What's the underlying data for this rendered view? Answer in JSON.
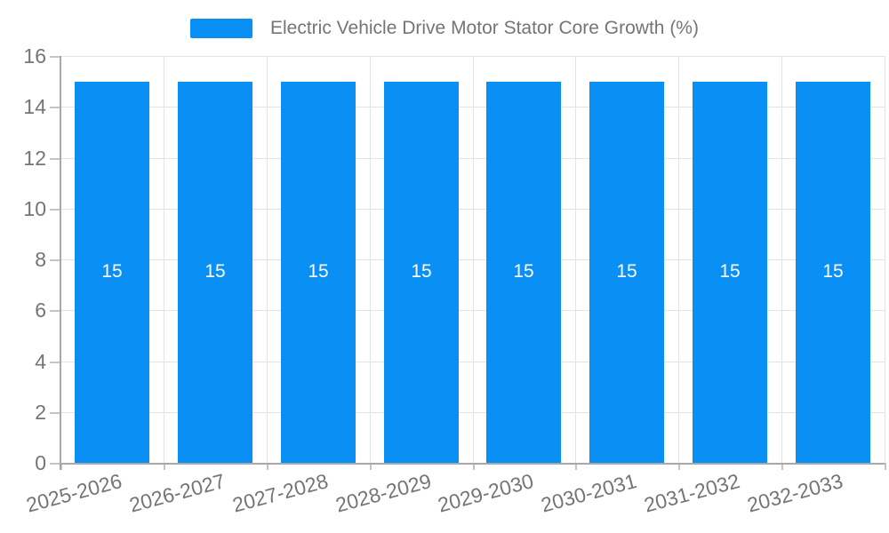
{
  "chart_data": {
    "type": "bar",
    "title": "Electric Vehicle Drive Motor Stator Core Growth (%)",
    "legend": {
      "label": "Electric Vehicle Drive Motor Stator Core Growth (%)",
      "position": "top"
    },
    "categories": [
      "2025-2026",
      "2026-2027",
      "2027-2028",
      "2028-2029",
      "2029-2030",
      "2030-2031",
      "2031-2032",
      "2032-2033"
    ],
    "series": [
      {
        "name": "Electric Vehicle Drive Motor Stator Core Growth (%)",
        "values": [
          15,
          15,
          15,
          15,
          15,
          15,
          15,
          15
        ]
      }
    ],
    "bar_value_labels": [
      "15",
      "15",
      "15",
      "15",
      "15",
      "15",
      "15",
      "15"
    ],
    "xlabel": "",
    "ylabel": "",
    "ylim": [
      0,
      16
    ],
    "yticks": [
      0,
      2,
      4,
      6,
      8,
      10,
      12,
      14,
      16
    ],
    "grid": true,
    "x_label_rotation_deg": -15,
    "colors": {
      "bar": "#0a90f5",
      "bar_value_text": "#ffffff",
      "grid": "#e4e4e4",
      "axis": "#a8a8a8",
      "tick_mark": "#c4c4c4",
      "text": "#757575"
    }
  }
}
